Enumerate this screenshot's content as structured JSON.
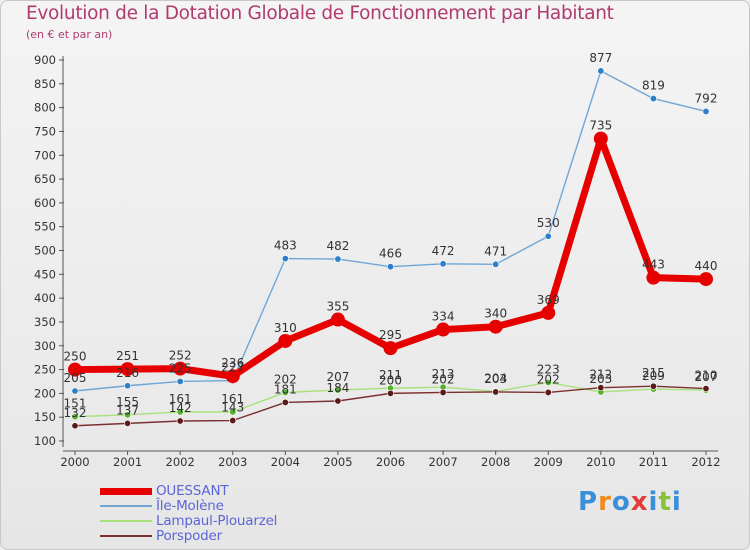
{
  "header": {
    "title": "Evolution de la Dotation Globale de Fonctionnement par Habitant",
    "subtitle": "(en € et par an)"
  },
  "brand": {
    "text": "Proxiti",
    "letters": [
      "P",
      "r",
      "o",
      "x",
      "i",
      "t",
      "i"
    ],
    "colors": [
      "#3a8fd8",
      "#f08a1d",
      "#3a8fd8",
      "#e23c3c",
      "#3a8fd8",
      "#88c23a",
      "#3a8fd8"
    ]
  },
  "chart_data": {
    "type": "line",
    "title": "Evolution de la Dotation Globale de Fonctionnement par Habitant",
    "subtitle": "(en € et par an)",
    "categories": [
      "2000",
      "2001",
      "2002",
      "2003",
      "2004",
      "2005",
      "2006",
      "2007",
      "2008",
      "2009",
      "2010",
      "2011",
      "2012"
    ],
    "y_ticks": [
      "100",
      "150",
      "200",
      "250",
      "300",
      "350",
      "400",
      "450",
      "500",
      "550",
      "600",
      "650",
      "700",
      "750",
      "800",
      "850",
      "900"
    ],
    "ylim": [
      100,
      900
    ],
    "grid": false,
    "legend_position": "bottom-left",
    "series": [
      {
        "name": "Île-Molène",
        "color": "#6fa6d6",
        "marker": "#2f7fc8",
        "width": "thin",
        "values": [
          205,
          216,
          225,
          227,
          483,
          482,
          466,
          472,
          471,
          530,
          877,
          819,
          792
        ],
        "labels": [
          "205",
          "216",
          "225",
          "227",
          "483",
          "482",
          "466",
          "472",
          "471",
          "530",
          "877",
          "819",
          "792"
        ]
      },
      {
        "name": "Lampaul-Plouarzel",
        "color": "#a8e07a",
        "marker": "#55b12c",
        "width": "thin",
        "values": [
          151,
          155,
          161,
          161,
          202,
          207,
          211,
          213,
          204,
          223,
          203,
          209,
          207
        ],
        "labels": [
          "151",
          "155",
          "161",
          "161",
          "202",
          "207",
          "211",
          "213",
          "204",
          "223",
          "203",
          "209",
          "207"
        ]
      },
      {
        "name": "Porspoder",
        "color": "#7a3030",
        "marker": "#5a1a1a",
        "width": "thin",
        "values": [
          132,
          137,
          142,
          143,
          181,
          184,
          200,
          202,
          203,
          202,
          212,
          215,
          210
        ],
        "labels": [
          "132",
          "137",
          "142",
          "143",
          "181",
          "184",
          "200",
          "202",
          "203",
          "202",
          "212",
          "215",
          "210"
        ]
      },
      {
        "name": "OUESSANT",
        "color": "#e60000",
        "marker": "#e60000",
        "width": "thick",
        "values": [
          250,
          251,
          252,
          236,
          310,
          355,
          295,
          334,
          340,
          369,
          735,
          443,
          440
        ],
        "labels": [
          "250",
          "251",
          "252",
          "236",
          "310",
          "355",
          "295",
          "334",
          "340",
          "369",
          "735",
          "443",
          "440"
        ]
      }
    ]
  },
  "legend": {
    "items": [
      {
        "label": "OUESSANT",
        "color": "#e60000",
        "width": "thick"
      },
      {
        "label": "Île-Molène",
        "color": "#6fa6d6",
        "width": "thin"
      },
      {
        "label": "Lampaul-Plouarzel",
        "color": "#a8e07a",
        "width": "thin"
      },
      {
        "label": "Porspoder",
        "color": "#7a3030",
        "width": "thin"
      }
    ]
  }
}
